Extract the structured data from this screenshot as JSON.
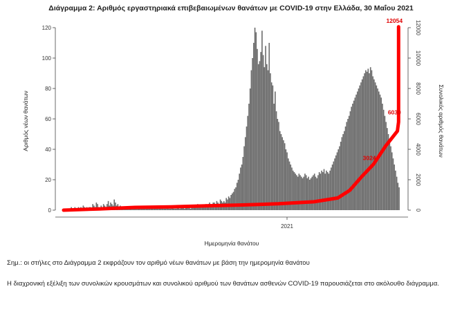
{
  "title": "Διάγραμμα 2: Αριθμός εργαστηριακά επιβεβαιωμένων θανάτων με COVID-19 στην Ελλάδα, 30 Μαΐου 2021",
  "note": "Σημ.: οι στήλες στο Διάγραμμα 2 εκφράζουν τον αριθμό νέων θανάτων με βάση την ημερομηνία θανάτου",
  "paragraph": "Η διαχρονική εξέλιξη των συνολικών κρουσμάτων και συνολικού αριθμού των θανάτων ασθενών COVID-19 παρουσιάζεται στο ακόλουθο διάγραμμα.",
  "colors": {
    "bars": "#6e6e6e",
    "cumulative_line": "#ff0000",
    "cumulative_labels": "#e00000"
  },
  "chart_data": {
    "type": "bar",
    "title": "Διάγραμμα 2: Αριθμός εργαστηριακά επιβεβαιωμένων θανάτων με COVID-19 στην Ελλάδα, 30 Μαΐου 2021",
    "xlabel": "Ημερομηνία θανάτου",
    "ylabel": "Αριθμός νέων θανάτων",
    "y2label": "Συνολικός αριθμός θανάτων",
    "x_tick_labels": [
      "2021"
    ],
    "ylim": [
      0,
      120
    ],
    "y_ticks": [
      "0",
      "20",
      "40",
      "60",
      "80",
      "100",
      "120"
    ],
    "y2lim": [
      0,
      12000
    ],
    "y2_ticks": [
      "0",
      "2000",
      "4000",
      "6000",
      "8000",
      "10000",
      "12000"
    ],
    "grid": false,
    "series": [
      {
        "name": "",
        "kind": "bar",
        "axis": "left",
        "values": [
          0,
          1,
          0,
          1,
          1,
          1,
          2,
          1,
          1,
          2,
          0,
          1,
          2,
          1,
          2,
          1,
          3,
          2,
          1,
          2,
          1,
          2,
          2,
          1,
          4,
          3,
          2,
          5,
          4,
          2,
          1,
          3,
          2,
          4,
          3,
          1,
          4,
          6,
          3,
          5,
          4,
          3,
          7,
          5,
          3,
          4,
          2,
          3,
          2,
          2,
          1,
          2,
          1,
          1,
          2,
          1,
          1,
          2,
          1,
          1,
          1,
          2,
          2,
          1,
          1,
          1,
          2,
          1,
          1,
          1,
          1,
          1,
          1,
          1,
          2,
          1,
          1,
          1,
          2,
          1,
          1,
          1,
          2,
          1,
          1,
          1,
          2,
          2,
          1,
          1,
          2,
          3,
          1,
          1,
          1,
          2,
          2,
          1,
          2,
          3,
          2,
          1,
          2,
          2,
          3,
          2,
          1,
          2,
          2,
          3,
          3,
          2,
          4,
          3,
          2,
          3,
          2,
          2,
          3,
          4,
          3,
          4,
          5,
          4,
          3,
          5,
          5,
          4,
          6,
          5,
          4,
          7,
          6,
          5,
          6,
          5,
          8,
          7,
          9,
          8,
          10,
          11,
          12,
          14,
          15,
          18,
          20,
          24,
          28,
          30,
          35,
          42,
          48,
          55,
          62,
          70,
          80,
          92,
          100,
          110,
          120,
          117,
          106,
          96,
          98,
          104,
          118,
          102,
          94,
          108,
          96,
          92,
          110,
          90,
          84,
          82,
          70,
          78,
          65,
          60,
          58,
          52,
          50,
          48,
          46,
          44,
          40,
          38,
          34,
          32,
          30,
          28,
          26,
          25,
          24,
          23,
          22,
          24,
          23,
          22,
          21,
          22,
          24,
          23,
          21,
          22,
          20,
          21,
          22,
          23,
          24,
          22,
          21,
          23,
          25,
          24,
          26,
          25,
          27,
          24,
          26,
          25,
          24,
          26,
          28,
          30,
          32,
          34,
          36,
          38,
          40,
          42,
          45,
          48,
          50,
          52,
          55,
          58,
          60,
          62,
          65,
          68,
          70,
          72,
          74,
          76,
          78,
          80,
          82,
          84,
          86,
          88,
          90,
          92,
          91,
          93,
          90,
          94,
          92,
          88,
          86,
          84,
          82,
          80,
          78,
          76,
          74,
          70,
          66,
          62,
          58,
          54,
          50,
          46,
          42,
          38,
          34,
          30,
          26,
          22,
          18,
          15
        ]
      },
      {
        "name": "",
        "kind": "line",
        "axis": "right",
        "x": [
          0,
          30,
          60,
          90,
          120,
          150,
          180,
          210,
          230,
          240,
          250,
          260,
          270,
          280,
          300,
          320,
          340,
          360,
          380,
          400,
          420,
          440,
          460,
          480,
          500
        ],
        "values": [
          0,
          80,
          180,
          220,
          280,
          340,
          420,
          550,
          800,
          1300,
          2200,
          3024,
          4200,
          5200,
          5800,
          6030,
          6600,
          7400,
          8500,
          9500,
          10400,
          11200,
          11800,
          12054,
          12054
        ],
        "labels": [
          {
            "x": 260,
            "text": "3024"
          },
          {
            "x": 320,
            "text": "6030"
          },
          {
            "x": 480,
            "text": "12054"
          }
        ]
      }
    ]
  }
}
